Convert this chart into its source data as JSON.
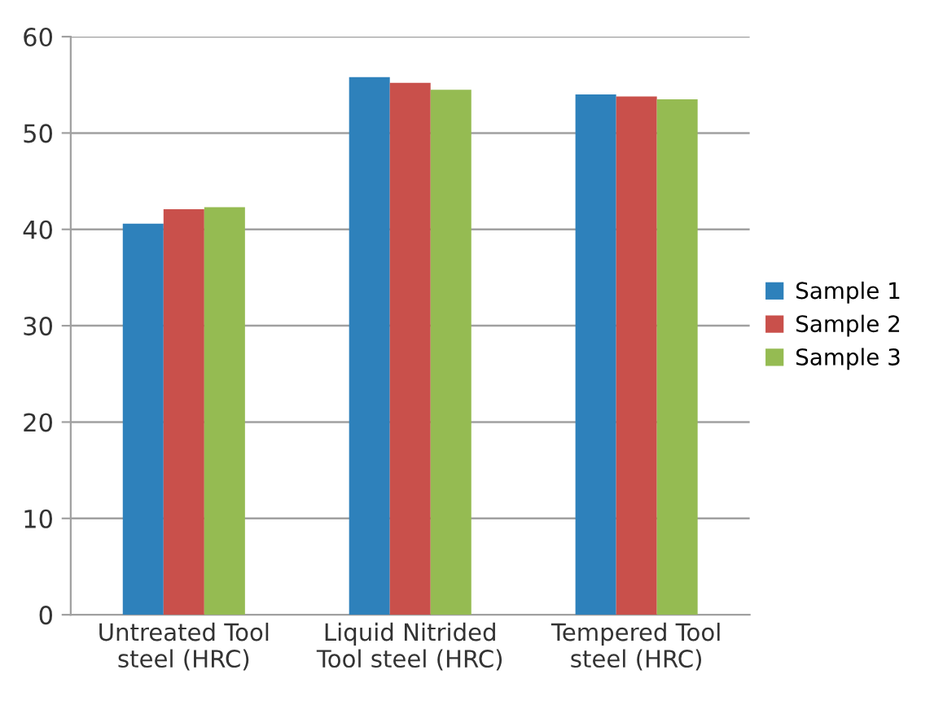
{
  "chart_data": {
    "type": "bar",
    "categories": [
      "Untreated Tool\nsteel (HRC)",
      "Liquid Nitrided\nTool steel (HRC)",
      "Tempered Tool\nsteel (HRC)"
    ],
    "series": [
      {
        "name": "Sample 1",
        "color": "#2e81bb",
        "values": [
          40.6,
          55.8,
          54.0
        ]
      },
      {
        "name": "Sample 2",
        "color": "#c9504b",
        "values": [
          42.1,
          55.2,
          53.8
        ]
      },
      {
        "name": "Sample 3",
        "color": "#95bb52",
        "values": [
          42.3,
          54.5,
          53.5
        ]
      }
    ],
    "ylim": [
      0,
      60
    ],
    "yticks": [
      0,
      10,
      20,
      30,
      40,
      50,
      60
    ],
    "grid": "y",
    "legend": "right"
  }
}
